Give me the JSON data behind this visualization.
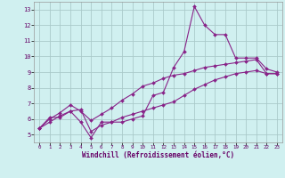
{
  "xlabel": "Windchill (Refroidissement éolien,°C)",
  "bg_color": "#d0f0f0",
  "grid_color": "#aacaca",
  "line_color": "#882288",
  "xlim": [
    -0.5,
    23.5
  ],
  "ylim": [
    4.5,
    13.5
  ],
  "yticks": [
    5,
    6,
    7,
    8,
    9,
    10,
    11,
    12,
    13
  ],
  "xticks": [
    0,
    1,
    2,
    3,
    4,
    5,
    6,
    7,
    8,
    9,
    10,
    11,
    12,
    13,
    14,
    15,
    16,
    17,
    18,
    19,
    20,
    21,
    22,
    23
  ],
  "line1_x": [
    0,
    1,
    2,
    3,
    4,
    5,
    6,
    7,
    8,
    9,
    10,
    11,
    12,
    13,
    14,
    15,
    16,
    17,
    18,
    19,
    20,
    21,
    22,
    23
  ],
  "line1_y": [
    5.4,
    6.1,
    6.1,
    6.5,
    5.8,
    4.8,
    5.8,
    5.8,
    5.8,
    6.0,
    6.2,
    7.5,
    7.7,
    9.3,
    10.3,
    13.2,
    12.0,
    11.4,
    11.4,
    9.9,
    9.9,
    9.9,
    9.2,
    9.0
  ],
  "line2_x": [
    0,
    1,
    2,
    3,
    4,
    5,
    6,
    7,
    8,
    9,
    10,
    11,
    12,
    13,
    14,
    15,
    16,
    17,
    18,
    19,
    20,
    21,
    22,
    23
  ],
  "line2_y": [
    5.4,
    6.0,
    6.4,
    6.9,
    6.5,
    5.9,
    6.3,
    6.7,
    7.2,
    7.6,
    8.1,
    8.3,
    8.6,
    8.8,
    8.9,
    9.1,
    9.3,
    9.4,
    9.5,
    9.6,
    9.7,
    9.8,
    8.9,
    8.9
  ],
  "line3_x": [
    0,
    1,
    2,
    3,
    4,
    5,
    6,
    7,
    8,
    9,
    10,
    11,
    12,
    13,
    14,
    15,
    16,
    17,
    18,
    19,
    20,
    21,
    22,
    23
  ],
  "line3_y": [
    5.4,
    5.8,
    6.2,
    6.5,
    6.6,
    5.2,
    5.6,
    5.8,
    6.1,
    6.3,
    6.5,
    6.7,
    6.9,
    7.1,
    7.5,
    7.9,
    8.2,
    8.5,
    8.7,
    8.9,
    9.0,
    9.1,
    8.9,
    8.9
  ]
}
